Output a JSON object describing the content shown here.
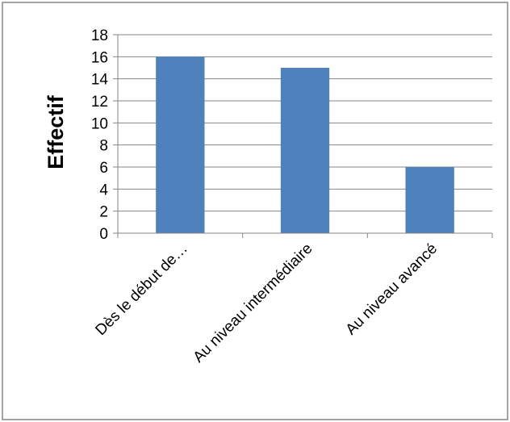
{
  "chart_data": {
    "type": "bar",
    "title": "",
    "xlabel": "",
    "ylabel": "Effectif",
    "categories": [
      "Dès le début de…",
      "Au niveau intermédiaire",
      "Au niveau avancé"
    ],
    "values": [
      16,
      15,
      6
    ],
    "ylim": [
      0,
      18
    ],
    "yticks": [
      0,
      2,
      4,
      6,
      8,
      10,
      12,
      14,
      16,
      18
    ],
    "grid": true,
    "legend": "none",
    "colors": {
      "bar": "#4f81bd",
      "grid": "#868686",
      "axis": "#868686",
      "border": "#868686"
    }
  }
}
